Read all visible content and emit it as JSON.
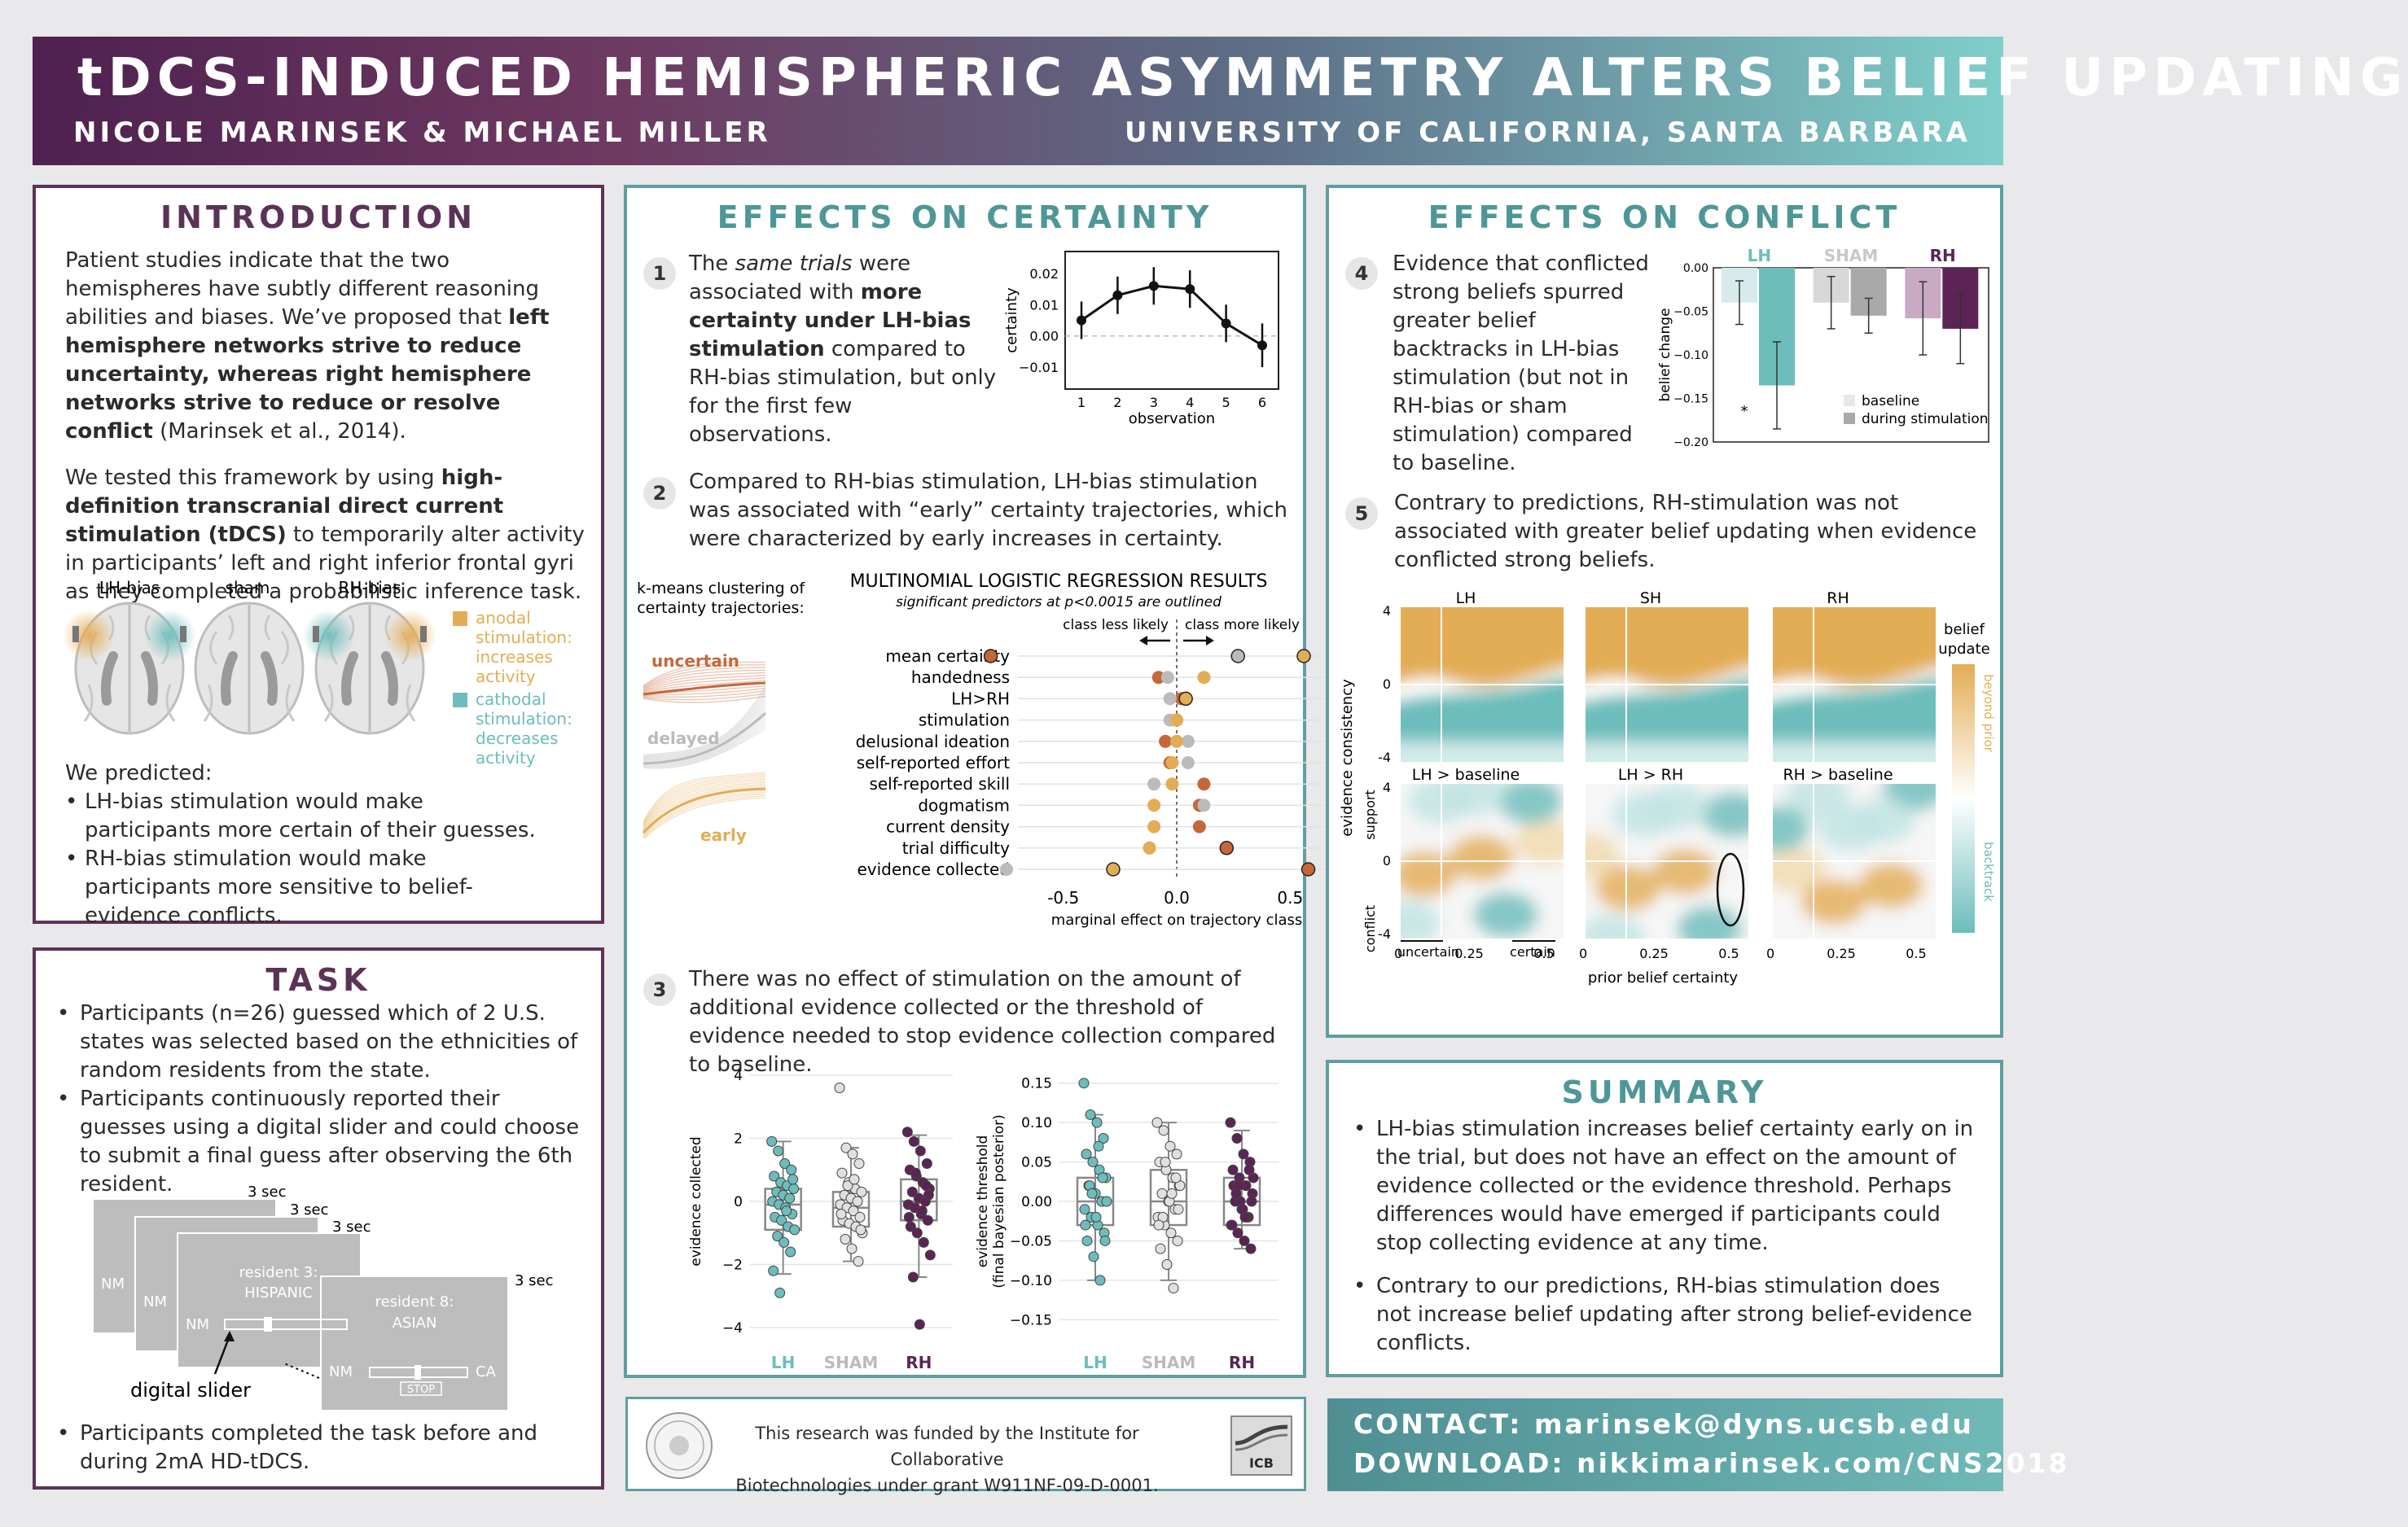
{
  "header": {
    "title": "tDCS-INDUCED HEMISPHERIC ASYMMETRY ALTERS BELIEF UPDATING",
    "authors": "NICOLE MARINSEK & MICHAEL MILLER",
    "affiliation": "UNIVERSITY OF CALIFORNIA, SANTA BARBARA"
  },
  "intro": {
    "title": "INTRODUCTION",
    "p1a": "Patient studies indicate that the two hemispheres have subtly different reasoning abilities and biases. We’ve proposed that ",
    "p1b": "left hemisphere networks strive to reduce uncertainty, whereas right hemisphere networks strive to reduce or resolve conflict",
    "p1c": " (Marinsek et al., 2014).",
    "p2a": "We tested this framework by using ",
    "p2b": "high-definition transcranial direct current stimulation (tDCS)",
    "p2c": " to temporarily alter activity in participants’ left and right inferior frontal gyri as they completed a probabilistic inference task.",
    "brain_labels": [
      "LH-bias",
      "sham",
      "RH-bias"
    ],
    "legend_anodal": [
      "anodal",
      "stimulation:",
      "increases",
      "activity"
    ],
    "legend_cathodal": [
      "cathodal",
      "stimulation:",
      "decreases",
      "activity"
    ],
    "predicted": "We predicted:",
    "bullets": [
      "LH-bias stimulation would make participants more certain of their guesses.",
      "RH-bias stimulation would make participants more sensitive to belief-evidence conflicts."
    ]
  },
  "task": {
    "title": "TASK",
    "bullets": [
      "Participants (n=26) guessed which of 2 U.S. states was selected based on the ethnicities of random residents from the state.",
      "Participants continuously reported their guesses using a digital slider and could choose to submit a final guess after observing the 6th resident."
    ],
    "last": "Participants completed the task before and during 2mA HD-tDCS.",
    "fig": {
      "sec": "3 sec",
      "nm": "NM",
      "ca": "CA",
      "card3a": "resident 3:",
      "card3b": "HISPANIC",
      "card8a": "resident 8:",
      "card8b": "ASIAN",
      "stop": "STOP",
      "slider": "digital slider"
    }
  },
  "certainty": {
    "title": "EFFECTS ON CERTAINTY",
    "s1": {
      "num": "1",
      "a": "The ",
      "b": "same trials",
      "c": " were associated with ",
      "d": "more certainty under LH-bias stimulation",
      "e": " compared to RH-bias stimulation, but only for the first few observations."
    },
    "s2": {
      "num": "2",
      "text": "Compared to RH-bias stimulation, LH-bias stimulation was associated with “early” certainty trajectories, which were characterized by early increases in certainty."
    },
    "s3": {
      "num": "3",
      "text": "There was no effect of stimulation on the amount of additional evidence collected or the threshold of evidence needed to stop evidence collection compared to baseline."
    },
    "kmeans_label": [
      "k-means clustering of",
      "certainty trajectories:"
    ],
    "clusters": [
      "uncertain",
      "delayed",
      "early"
    ],
    "mlr_title": "MULTINOMIAL LOGISTIC REGRESSION RESULTS",
    "mlr_sub": "significant predictors at p<0.0015 are outlined",
    "class_less": "class less likely",
    "class_more": "class more likely"
  },
  "conflict": {
    "title": "EFFECTS ON CONFLICT",
    "s4": {
      "num": "4",
      "text": "Evidence that conflicted strong beliefs spurred greater belief backtracks in LH-bias stimulation (but not in RH-bias or sham stimulation) compared to baseline."
    },
    "s5": {
      "num": "5",
      "text": "Contrary to predictions, RH-stimulation was not associated with greater belief updating when evidence conflicted strong beliefs."
    },
    "hm_titles": [
      "LH",
      "SH",
      "RH",
      "LH > baseline",
      "LH > RH",
      "RH > baseline"
    ],
    "ylabel": "evidence consistency",
    "support": "support",
    "conflict": "conflict",
    "xlabel": "prior belief certainty",
    "uncertain": "uncertain",
    "certain": "certain",
    "cb_title": [
      "belief",
      "update"
    ],
    "cb_top": "beyond prior",
    "cb_bot": "backtrack",
    "xticks": [
      "0",
      "0.25",
      "0.5"
    ],
    "yticks": [
      "4",
      "0",
      "-4"
    ]
  },
  "summary": {
    "title": "SUMMARY",
    "bullets": [
      "LH-bias stimulation increases belief certainty early on in the trial, but does not have an effect on the amount of evidence collected or the evidence threshold. Perhaps differences would have emerged if participants could stop collecting evidence at any time.",
      "Contrary to our predictions, RH-bias stimulation does not increase belief updating after strong belief-evidence conflicts."
    ]
  },
  "footer": {
    "funding1": "This research was funded by the Institute for Collaborative",
    "funding2": "Biotechnologies under grant W911NF-09-D-0001.",
    "icb": "ICB"
  },
  "contact": {
    "line1": "CONTACT: marinsek@dyns.ucsb.edu",
    "line2": "DOWNLOAD: nikkimarinsek.com/CNS2018"
  },
  "colors": {
    "lh": "#6cbdbb",
    "sham": "#bfbfbf",
    "rh": "#5b2454",
    "gold": "#e3ad55",
    "orange": "#c4683a"
  },
  "chart_data": [
    {
      "type": "line",
      "title": "",
      "xlabel": "observation",
      "ylabel": "certainty",
      "x": [
        1,
        2,
        3,
        4,
        5,
        6
      ],
      "y": [
        0.005,
        0.013,
        0.016,
        0.015,
        0.004,
        -0.003
      ],
      "err": [
        0.006,
        0.006,
        0.006,
        0.006,
        0.006,
        0.007
      ],
      "ylim": [
        -0.017,
        0.027
      ],
      "yticks": [
        "0.02",
        "0.01",
        "0.00",
        "−0.01"
      ],
      "xticks": [
        "1",
        "2",
        "3",
        "4",
        "5",
        "6"
      ]
    },
    {
      "type": "scatter",
      "title": "MULTINOMIAL LOGISTIC REGRESSION RESULTS",
      "xlabel": "marginal effect on trajectory class",
      "xlim": [
        -0.7,
        0.7
      ],
      "xticks": [
        "-0.5",
        "0.0",
        "0.5"
      ],
      "categories": [
        "mean certainty",
        "handedness",
        "LH>RH",
        "stimulation",
        "delusional ideation",
        "self-reported effort",
        "self-reported skill",
        "dogmatism",
        "current density",
        "trial difficulty",
        "evidence collected"
      ],
      "series": [
        {
          "name": "uncertain",
          "values": [
            -0.82,
            -0.08,
            0.02,
            0.0,
            -0.05,
            -0.03,
            0.12,
            0.1,
            0.1,
            0.22,
            0.58
          ],
          "outlined": [
            true,
            false,
            false,
            false,
            false,
            false,
            false,
            false,
            false,
            true,
            true
          ]
        },
        {
          "name": "delayed",
          "values": [
            0.27,
            -0.04,
            -0.03,
            -0.03,
            0.05,
            0.05,
            -0.1,
            0.12,
            -0.1,
            -0.12,
            -0.75
          ],
          "outlined": [
            true,
            false,
            false,
            false,
            false,
            false,
            false,
            false,
            false,
            false,
            false
          ]
        },
        {
          "name": "early",
          "values": [
            0.56,
            0.12,
            0.04,
            0.0,
            0.0,
            -0.02,
            -0.02,
            -0.1,
            -0.1,
            -0.12,
            -0.28
          ],
          "outlined": [
            true,
            false,
            true,
            false,
            false,
            false,
            false,
            false,
            false,
            false,
            true
          ]
        }
      ]
    },
    {
      "type": "bar",
      "title": "",
      "ylabel": "belief change",
      "categories": [
        "LH",
        "SHAM",
        "RH"
      ],
      "ylim": [
        -0.2,
        0.0
      ],
      "yticks": [
        "0.00",
        "−0.05",
        "−0.10",
        "−0.15",
        "−0.20"
      ],
      "series": [
        {
          "name": "baseline",
          "values": [
            -0.04,
            -0.04,
            -0.058
          ],
          "err": [
            0.025,
            0.03,
            0.042
          ]
        },
        {
          "name": "during stimulation",
          "values": [
            -0.135,
            -0.055,
            -0.07
          ],
          "err": [
            0.05,
            0.02,
            0.04
          ]
        }
      ],
      "annotation": "*"
    },
    {
      "type": "scatter",
      "title": "",
      "ylabel": "evidence collected",
      "categories": [
        "LH",
        "SHAM",
        "RH"
      ],
      "ylim": [
        -4,
        4
      ],
      "yticks": [
        "4",
        "2",
        "0",
        "−2",
        "−4"
      ],
      "series": [
        {
          "name": "LH",
          "median": -0.1,
          "q1": -0.9,
          "q3": 0.4,
          "lo": -2.3,
          "hi": 1.9,
          "points": [
            1.9,
            1.6,
            1.2,
            1.0,
            0.8,
            0.6,
            0.5,
            0.4,
            0.3,
            0.2,
            0.1,
            0.0,
            -0.1,
            -0.2,
            -0.4,
            -0.5,
            -0.6,
            -0.8,
            -0.9,
            -1.1,
            -1.3,
            -1.6,
            -2.2,
            -2.9,
            -0.3,
            0.7
          ]
        },
        {
          "name": "SHAM",
          "median": -0.2,
          "q1": -0.8,
          "q3": 0.3,
          "lo": -1.9,
          "hi": 1.7,
          "points": [
            3.6,
            1.7,
            1.5,
            1.2,
            0.9,
            0.6,
            0.4,
            0.3,
            0.2,
            0.1,
            0.0,
            -0.1,
            -0.2,
            -0.3,
            -0.5,
            -0.6,
            -0.7,
            -0.8,
            -1.0,
            -1.2,
            -1.5,
            -1.9,
            -0.4,
            0.5,
            0.7,
            -0.9
          ]
        },
        {
          "name": "RH",
          "median": 0.0,
          "q1": -0.6,
          "q3": 0.7,
          "lo": -2.4,
          "hi": 2.1,
          "points": [
            2.2,
            1.9,
            1.6,
            1.2,
            1.0,
            0.8,
            0.6,
            0.4,
            0.3,
            0.1,
            0.0,
            -0.1,
            -0.2,
            -0.4,
            -0.6,
            -0.8,
            -1.0,
            -1.3,
            -1.7,
            -2.4,
            -3.9,
            0.5,
            -0.5,
            0.9,
            -0.3,
            0.2
          ]
        }
      ]
    },
    {
      "type": "scatter",
      "title": "",
      "ylabel": "evidence threshold (final bayesian posterior)",
      "categories": [
        "LH",
        "SHAM",
        "RH"
      ],
      "ylim": [
        -0.16,
        0.16
      ],
      "yticks": [
        "0.15",
        "0.10",
        "0.05",
        "0.00",
        "−0.05",
        "−0.10",
        "−0.15"
      ],
      "series": [
        {
          "name": "LH",
          "median": 0.0,
          "q1": -0.03,
          "q3": 0.03,
          "lo": -0.1,
          "hi": 0.11,
          "points": [
            0.15,
            0.11,
            0.1,
            0.08,
            0.06,
            0.05,
            0.04,
            0.03,
            0.02,
            0.01,
            0.0,
            -0.01,
            -0.02,
            -0.03,
            -0.04,
            -0.05,
            -0.07,
            -0.1,
            0.0,
            0.02,
            -0.02,
            0.03,
            -0.03,
            0.01,
            0.07,
            -0.05
          ]
        },
        {
          "name": "SHAM",
          "median": 0.0,
          "q1": -0.03,
          "q3": 0.04,
          "lo": -0.1,
          "hi": 0.1,
          "points": [
            0.1,
            0.09,
            0.07,
            0.06,
            0.05,
            0.04,
            0.03,
            0.02,
            0.01,
            0.0,
            -0.01,
            -0.02,
            -0.03,
            -0.04,
            -0.05,
            -0.06,
            -0.08,
            -0.11,
            0.02,
            -0.02,
            0.0,
            0.03,
            -0.03,
            0.05,
            0.01,
            -0.01
          ]
        },
        {
          "name": "RH",
          "median": 0.0,
          "q1": -0.03,
          "q3": 0.03,
          "lo": -0.06,
          "hi": 0.09,
          "points": [
            0.1,
            0.08,
            0.06,
            0.05,
            0.04,
            0.03,
            0.02,
            0.01,
            0.0,
            -0.01,
            -0.02,
            -0.03,
            -0.04,
            -0.05,
            -0.06,
            0.02,
            0.0,
            -0.02,
            0.03,
            0.01,
            -0.01,
            0.04,
            -0.03,
            0.02,
            -0.02,
            0.0
          ]
        }
      ]
    }
  ]
}
